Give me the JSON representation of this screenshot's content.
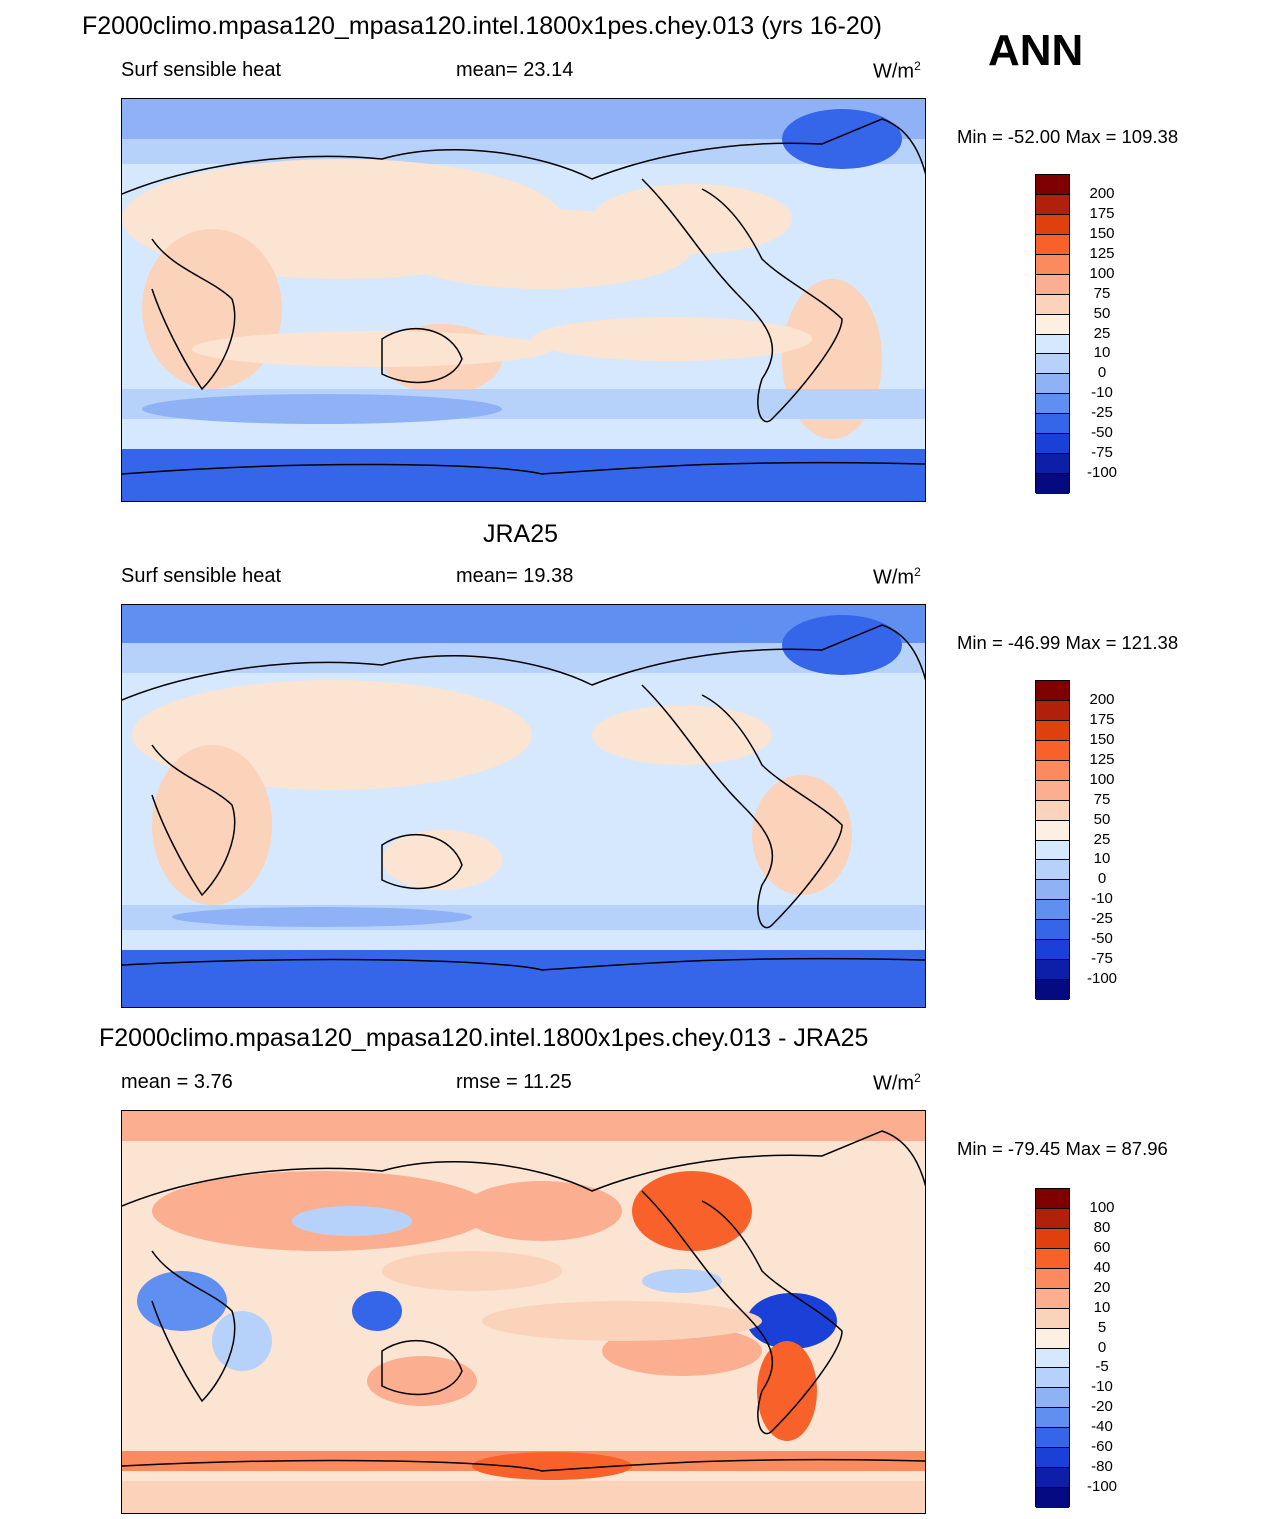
{
  "header": {
    "title": "F2000climo.mpasa120_mpasa120.intel.1800x1pes.chey.013 (yrs 16-20)",
    "season": "ANN"
  },
  "panels": [
    {
      "id": "model",
      "section_title": "",
      "left": "Surf sensible heat",
      "center": "mean=  23.14",
      "units": "W/m",
      "units_sup": "2",
      "minmax": "Min = -52.00 Max = 109.38",
      "colorbar_labels": [
        "200",
        "175",
        "150",
        "125",
        "100",
        "75",
        "50",
        "25",
        "10",
        "0",
        "-10",
        "-25",
        "-50",
        "-75",
        "-100"
      ]
    },
    {
      "id": "obs",
      "section_title": "JRA25",
      "left": "Surf sensible heat",
      "center": "mean=  19.38",
      "units": "W/m",
      "units_sup": "2",
      "minmax": "Min = -46.99 Max = 121.38",
      "colorbar_labels": [
        "200",
        "175",
        "150",
        "125",
        "100",
        "75",
        "50",
        "25",
        "10",
        "0",
        "-10",
        "-25",
        "-50",
        "-75",
        "-100"
      ]
    },
    {
      "id": "diff",
      "section_title": "F2000climo.mpasa120_mpasa120.intel.1800x1pes.chey.013 - JRA25",
      "left": "mean =   3.76",
      "center": "rmse =  11.25",
      "units": "W/m",
      "units_sup": "2",
      "minmax": "Min = -79.45 Max =  87.96",
      "colorbar_labels": [
        "100",
        "80",
        "60",
        "40",
        "20",
        "10",
        "5",
        "0",
        "-5",
        "-10",
        "-20",
        "-40",
        "-60",
        "-80",
        "-100"
      ]
    }
  ],
  "colors": {
    "colorbar_top_to_bottom": [
      "#7f0000",
      "#b0200a",
      "#e0400e",
      "#f8622a",
      "#fb8a5e",
      "#fbae90",
      "#fbd2ba",
      "#fdf0e2",
      "#d6e8fd",
      "#b7d2fa",
      "#8fb2f6",
      "#5f8ff0",
      "#3566ea",
      "#1a40d8",
      "#0d1ea8",
      "#050a80"
    ],
    "ocean_light": "#d6e8fd",
    "warm_light": "#fbe4d2",
    "cold_mid": "#8fb2f6",
    "cold_strong": "#3566ea"
  }
}
